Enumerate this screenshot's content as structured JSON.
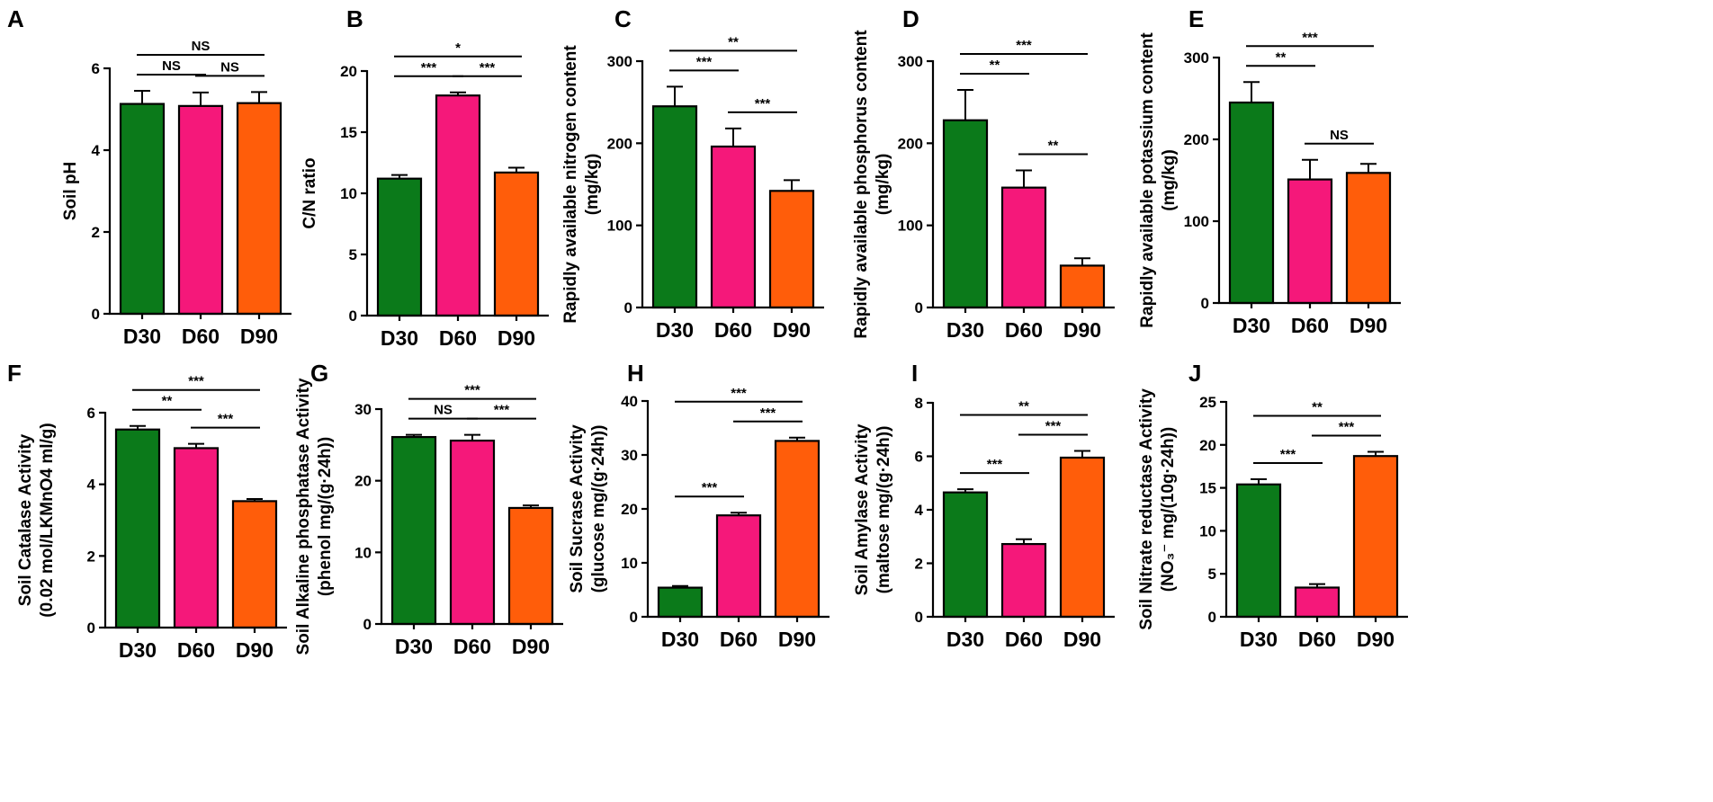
{
  "colors": {
    "D30": "#0b7a1a",
    "D60": "#f5187a",
    "D90": "#ff5d0a"
  },
  "chart_data": [
    {
      "type": "bar",
      "panel": "A",
      "ylabel": [
        "Soil pH"
      ],
      "categories": [
        "D30",
        "D60",
        "D90"
      ],
      "values": [
        5.13,
        5.08,
        5.15
      ],
      "errors": [
        0.32,
        0.33,
        0.27
      ],
      "ylim": [
        0,
        6
      ],
      "yticks": [
        0,
        2,
        4,
        6
      ],
      "comparisons": [
        {
          "a": 0,
          "b": 1,
          "label": "NS"
        },
        {
          "a": 1,
          "b": 2,
          "label": "NS"
        },
        {
          "a": 0,
          "b": 2,
          "label": "NS"
        }
      ]
    },
    {
      "type": "bar",
      "panel": "B",
      "ylabel": [
        "C/N ratio"
      ],
      "categories": [
        "D30",
        "D60",
        "D90"
      ],
      "values": [
        11.2,
        18.0,
        11.7
      ],
      "errors": [
        0.3,
        0.25,
        0.4
      ],
      "ylim": [
        0,
        20
      ],
      "yticks": [
        0,
        5,
        10,
        15,
        20
      ],
      "comparisons": [
        {
          "a": 0,
          "b": 1,
          "label": "***"
        },
        {
          "a": 1,
          "b": 2,
          "label": "***"
        },
        {
          "a": 0,
          "b": 2,
          "label": "*"
        }
      ]
    },
    {
      "type": "bar",
      "panel": "C",
      "ylabel": [
        "Rapidly available nitrogen content",
        "(mg/kg)"
      ],
      "categories": [
        "D30",
        "D60",
        "D90"
      ],
      "values": [
        245,
        196,
        142
      ],
      "errors": [
        24,
        22,
        13
      ],
      "ylim": [
        0,
        300
      ],
      "yticks": [
        0,
        100,
        200,
        300
      ],
      "comparisons": [
        {
          "a": 0,
          "b": 1,
          "label": "***"
        },
        {
          "a": 1,
          "b": 2,
          "label": "***"
        },
        {
          "a": 0,
          "b": 2,
          "label": "**"
        }
      ]
    },
    {
      "type": "bar",
      "panel": "D",
      "ylabel": [
        "Rapidly available phosphorus content",
        "(mg/kg)"
      ],
      "categories": [
        "D30",
        "D60",
        "D90"
      ],
      "values": [
        228,
        146,
        51
      ],
      "errors": [
        37,
        21,
        9
      ],
      "ylim": [
        0,
        300
      ],
      "yticks": [
        0,
        100,
        200,
        300
      ],
      "comparisons": [
        {
          "a": 0,
          "b": 1,
          "label": "**"
        },
        {
          "a": 1,
          "b": 2,
          "label": "**"
        },
        {
          "a": 0,
          "b": 2,
          "label": "***"
        }
      ]
    },
    {
      "type": "bar",
      "panel": "E",
      "ylabel": [
        "Rapidly available potassium content",
        "(mg/kg)"
      ],
      "categories": [
        "D30",
        "D60",
        "D90"
      ],
      "values": [
        245,
        151,
        159
      ],
      "errors": [
        25,
        24,
        11
      ],
      "ylim": [
        0,
        300
      ],
      "yticks": [
        0,
        100,
        200,
        300
      ],
      "comparisons": [
        {
          "a": 0,
          "b": 1,
          "label": "**"
        },
        {
          "a": 1,
          "b": 2,
          "label": "NS"
        },
        {
          "a": 0,
          "b": 2,
          "label": "***"
        }
      ]
    },
    {
      "type": "bar",
      "panel": "F",
      "ylabel": [
        "Soil Catalase Activity",
        "(0.02 mol/LKMnO4 ml/g)"
      ],
      "categories": [
        "D30",
        "D60",
        "D90"
      ],
      "values": [
        5.53,
        5.01,
        3.53
      ],
      "errors": [
        0.1,
        0.12,
        0.06
      ],
      "ylim": [
        0,
        6
      ],
      "yticks": [
        0,
        2,
        4,
        6
      ],
      "comparisons": [
        {
          "a": 0,
          "b": 1,
          "label": "**"
        },
        {
          "a": 1,
          "b": 2,
          "label": "***"
        },
        {
          "a": 0,
          "b": 2,
          "label": "***"
        }
      ]
    },
    {
      "type": "bar",
      "panel": "G",
      "ylabel": [
        "Soil Alkaline phosphatase Activity",
        "(phenol mg/(g·24h))"
      ],
      "categories": [
        "D30",
        "D60",
        "D90"
      ],
      "values": [
        26.1,
        25.6,
        16.2
      ],
      "errors": [
        0.3,
        0.8,
        0.35
      ],
      "ylim": [
        0,
        30
      ],
      "yticks": [
        0,
        10,
        20,
        30
      ],
      "comparisons": [
        {
          "a": 0,
          "b": 1,
          "label": "NS"
        },
        {
          "a": 1,
          "b": 2,
          "label": "***"
        },
        {
          "a": 0,
          "b": 2,
          "label": "***"
        }
      ]
    },
    {
      "type": "bar",
      "panel": "H",
      "ylabel": [
        "Soil Sucrase Activity",
        "(glucose mg/(g·24h))"
      ],
      "categories": [
        "D30",
        "D60",
        "D90"
      ],
      "values": [
        5.4,
        18.8,
        32.6
      ],
      "errors": [
        0.3,
        0.5,
        0.6
      ],
      "ylim": [
        0,
        40
      ],
      "yticks": [
        0,
        10,
        20,
        30,
        40
      ],
      "comparisons": [
        {
          "a": 0,
          "b": 1,
          "label": "***"
        },
        {
          "a": 1,
          "b": 2,
          "label": "***"
        },
        {
          "a": 0,
          "b": 2,
          "label": "***"
        }
      ]
    },
    {
      "type": "bar",
      "panel": "I",
      "ylabel": [
        "Soil Amylase Activity",
        "(maltose mg/(g·24h))"
      ],
      "categories": [
        "D30",
        "D60",
        "D90"
      ],
      "values": [
        4.65,
        2.72,
        5.95
      ],
      "errors": [
        0.12,
        0.18,
        0.25
      ],
      "ylim": [
        0,
        8
      ],
      "yticks": [
        0,
        2,
        4,
        6,
        8
      ],
      "comparisons": [
        {
          "a": 0,
          "b": 1,
          "label": "***"
        },
        {
          "a": 1,
          "b": 2,
          "label": "***"
        },
        {
          "a": 0,
          "b": 2,
          "label": "**"
        }
      ]
    },
    {
      "type": "bar",
      "panel": "J",
      "ylabel": [
        "Soil Nitrate reductase Activity",
        "(NO₃⁻ mg/(10g·24h))"
      ],
      "categories": [
        "D30",
        "D60",
        "D90"
      ],
      "values": [
        15.4,
        3.4,
        18.7
      ],
      "errors": [
        0.6,
        0.4,
        0.5
      ],
      "ylim": [
        0,
        25
      ],
      "yticks": [
        0,
        5,
        10,
        15,
        20,
        25
      ],
      "comparisons": [
        {
          "a": 0,
          "b": 1,
          "label": "***"
        },
        {
          "a": 1,
          "b": 2,
          "label": "***"
        },
        {
          "a": 0,
          "b": 2,
          "label": "**"
        }
      ]
    }
  ]
}
